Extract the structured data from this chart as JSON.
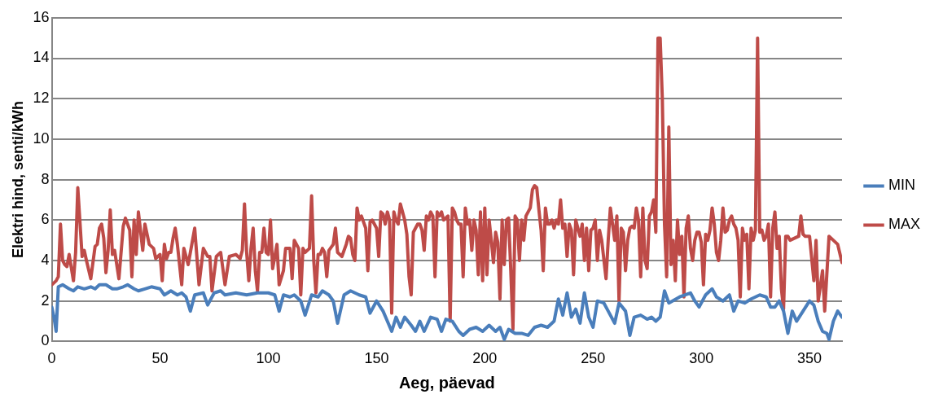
{
  "chart_data": {
    "type": "line",
    "xlabel": "Aeg, päevad",
    "ylabel": "Elektri hind, senti/kWh",
    "xlim": [
      0,
      365
    ],
    "xticks": [
      0,
      50,
      100,
      150,
      200,
      250,
      300,
      350
    ],
    "ylim": [
      0,
      16
    ],
    "yticks": [
      0,
      2,
      4,
      6,
      8,
      10,
      12,
      14,
      16
    ],
    "grid": "y",
    "legend": "right",
    "marker": "none",
    "line_style": "solid",
    "series": [
      {
        "name": "MIN",
        "color": "#4a7ebb",
        "x": [
          0,
          1,
          2,
          3,
          5,
          8,
          10,
          12,
          15,
          18,
          20,
          22,
          25,
          28,
          30,
          33,
          35,
          38,
          40,
          43,
          46,
          50,
          52,
          55,
          58,
          60,
          62,
          64,
          66,
          70,
          72,
          75,
          78,
          80,
          85,
          90,
          95,
          100,
          103,
          105,
          107,
          110,
          112,
          115,
          117,
          120,
          123,
          125,
          128,
          130,
          132,
          135,
          138,
          142,
          145,
          147,
          150,
          153,
          155,
          157,
          159,
          161,
          163,
          166,
          168,
          170,
          172,
          175,
          178,
          180,
          182,
          185,
          188,
          190,
          193,
          196,
          199,
          202,
          205,
          207,
          209,
          211,
          214,
          217,
          220,
          223,
          226,
          229,
          232,
          234,
          236,
          238,
          240,
          242,
          244,
          246,
          248,
          250,
          252,
          255,
          257,
          260,
          262,
          265,
          267,
          269,
          272,
          275,
          277,
          279,
          281,
          283,
          285,
          290,
          295,
          297,
          299,
          302,
          305,
          307,
          310,
          313,
          315,
          317,
          320,
          323,
          325,
          327,
          330,
          332,
          334,
          336,
          338,
          340,
          342,
          344,
          347,
          350,
          352,
          354,
          356,
          358,
          359,
          361,
          363,
          365
        ],
        "values": [
          1.7,
          1.2,
          0.5,
          2.7,
          2.8,
          2.6,
          2.5,
          2.7,
          2.6,
          2.7,
          2.6,
          2.8,
          2.8,
          2.6,
          2.6,
          2.7,
          2.8,
          2.6,
          2.5,
          2.6,
          2.7,
          2.6,
          2.3,
          2.5,
          2.3,
          2.4,
          2.2,
          1.5,
          2.3,
          2.4,
          1.8,
          2.4,
          2.5,
          2.3,
          2.4,
          2.3,
          2.4,
          2.4,
          2.3,
          1.5,
          2.3,
          2.2,
          2.3,
          2.0,
          1.3,
          2.3,
          2.2,
          2.5,
          2.3,
          2.0,
          0.9,
          2.3,
          2.5,
          2.3,
          2.2,
          1.4,
          2.0,
          1.5,
          1.0,
          0.5,
          1.2,
          0.7,
          1.2,
          0.8,
          0.5,
          1.0,
          0.5,
          1.2,
          1.1,
          0.5,
          1.1,
          1.0,
          0.5,
          0.3,
          0.6,
          0.7,
          0.5,
          0.8,
          0.5,
          0.7,
          0.1,
          0.6,
          0.4,
          0.4,
          0.3,
          0.7,
          0.8,
          0.7,
          1.0,
          2.1,
          1.3,
          2.4,
          1.2,
          1.6,
          0.9,
          2.4,
          1.2,
          0.7,
          2.0,
          1.9,
          1.5,
          0.9,
          1.9,
          1.5,
          0.3,
          1.2,
          1.3,
          1.1,
          1.2,
          1.0,
          1.2,
          2.5,
          1.9,
          2.2,
          2.4,
          2.0,
          1.7,
          2.3,
          2.6,
          2.2,
          2.0,
          2.3,
          1.5,
          2.0,
          1.9,
          2.1,
          2.2,
          2.3,
          2.2,
          1.7,
          1.7,
          2.0,
          1.5,
          0.4,
          1.5,
          1.0,
          1.5,
          2.0,
          1.8,
          1.0,
          0.5,
          0.4,
          0.1,
          1.0,
          1.5,
          1.2
        ]
      },
      {
        "name": "MAX",
        "color": "#be4b48",
        "x": [
          0,
          2,
          3,
          4,
          5,
          6,
          7,
          8,
          10,
          11,
          12,
          14,
          15,
          16,
          18,
          20,
          21,
          22,
          23,
          24,
          25,
          26,
          27,
          28,
          29,
          31,
          33,
          34,
          36,
          37,
          38,
          39,
          40,
          42,
          43,
          45,
          47,
          48,
          50,
          51,
          52,
          53,
          54,
          55,
          56,
          57,
          58,
          60,
          61,
          62,
          63,
          64,
          66,
          68,
          70,
          72,
          73,
          74,
          76,
          78,
          80,
          82,
          85,
          87,
          88,
          89,
          90,
          91,
          92,
          93,
          94,
          95,
          96,
          97,
          98,
          99,
          100,
          101,
          102,
          104,
          105,
          107,
          108,
          110,
          111,
          112,
          114,
          115,
          116,
          117,
          119,
          120,
          121,
          122,
          123,
          124,
          125,
          126,
          127,
          128,
          130,
          131,
          132,
          134,
          136,
          137,
          138,
          139,
          140,
          141,
          142,
          143,
          145,
          146,
          147,
          148,
          150,
          151,
          152,
          153,
          154,
          155,
          156,
          157,
          158,
          159,
          160,
          161,
          162,
          163,
          164,
          165,
          166,
          167,
          168,
          169,
          170,
          171,
          172,
          173,
          174,
          175,
          176,
          177,
          178,
          179,
          180,
          181,
          183,
          184,
          185,
          186,
          187,
          188,
          189,
          190,
          191,
          192,
          193,
          194,
          195,
          196,
          197,
          198,
          199,
          200,
          201,
          202,
          203,
          204,
          205,
          206,
          207,
          208,
          209,
          210,
          211,
          212,
          213,
          214,
          215,
          216,
          217,
          218,
          219,
          220,
          221,
          222,
          223,
          224,
          225,
          226,
          227,
          228,
          229,
          230,
          231,
          232,
          233,
          234,
          235,
          236,
          237,
          238,
          239,
          240,
          241,
          242,
          244,
          245,
          246,
          247,
          248,
          249,
          250,
          251,
          252,
          253,
          254,
          256,
          257,
          258,
          260,
          261,
          262,
          263,
          264,
          265,
          266,
          267,
          268,
          269,
          270,
          271,
          272,
          273,
          274,
          275,
          276,
          277,
          278,
          279,
          280,
          281,
          282,
          283,
          284,
          285,
          286,
          287,
          288,
          289,
          290,
          291,
          292,
          293,
          294,
          295,
          296,
          297,
          298,
          299,
          300,
          301,
          302,
          303,
          304,
          305,
          306,
          307,
          308,
          309,
          310,
          311,
          312,
          313,
          314,
          315,
          316,
          317,
          318,
          319,
          320,
          321,
          322,
          323,
          324,
          325,
          326,
          327,
          328,
          329,
          330,
          331,
          332,
          333,
          334,
          335,
          336,
          337,
          338,
          339,
          340,
          341,
          345,
          346,
          347,
          348,
          350,
          352,
          353,
          354,
          356,
          357,
          359,
          361,
          363,
          365
        ],
        "values": [
          2.8,
          3.0,
          3.2,
          5.8,
          4.0,
          3.8,
          3.7,
          4.3,
          3.0,
          4.4,
          7.6,
          4.2,
          4.5,
          4.0,
          3.1,
          4.7,
          4.8,
          5.6,
          5.8,
          5.1,
          3.4,
          4.5,
          6.5,
          4.3,
          4.5,
          3.1,
          5.7,
          6.1,
          5.5,
          3.2,
          6.0,
          4.3,
          6.4,
          4.5,
          5.8,
          4.8,
          4.6,
          4.1,
          4.3,
          3.0,
          4.8,
          4.1,
          4.4,
          4.4,
          5.1,
          5.6,
          4.8,
          2.8,
          4.6,
          4.2,
          3.8,
          4.4,
          5.6,
          2.8,
          4.6,
          4.2,
          4.2,
          2.5,
          4.2,
          4.4,
          2.8,
          4.2,
          4.3,
          4.1,
          4.5,
          6.8,
          4.4,
          3.0,
          4.6,
          5.6,
          3.5,
          2.5,
          4.4,
          4.4,
          5.6,
          4.4,
          4.3,
          6.0,
          3.6,
          4.8,
          2.8,
          3.5,
          4.6,
          4.6,
          3.1,
          5.0,
          4.6,
          2.3,
          4.6,
          4.4,
          4.6,
          7.2,
          4.0,
          2.4,
          4.3,
          4.3,
          4.6,
          4.4,
          3.2,
          4.5,
          4.8,
          5.6,
          4.4,
          4.2,
          4.8,
          5.2,
          5.1,
          4.3,
          4.0,
          6.6,
          6.0,
          6.2,
          5.6,
          3.5,
          5.9,
          6.0,
          5.6,
          4.2,
          6.4,
          6.3,
          5.8,
          6.4,
          6.0,
          1.4,
          6.4,
          6.0,
          5.8,
          6.8,
          6.4,
          6.0,
          5.3,
          3.2,
          2.3,
          5.4,
          5.6,
          5.8,
          5.8,
          5.5,
          4.5,
          6.2,
          6.0,
          6.4,
          6.2,
          3.2,
          6.4,
          6.2,
          6.4,
          6.0,
          6.2,
          1.0,
          6.6,
          6.4,
          6.0,
          5.8,
          5.8,
          3.2,
          6.6,
          5.8,
          6.0,
          4.5,
          6.0,
          5.5,
          3.3,
          6.4,
          3.0,
          6.6,
          3.3,
          6.0,
          5.0,
          3.9,
          5.4,
          4.9,
          2.1,
          6.0,
          3.8,
          6.0,
          6.1,
          3.5,
          0.6,
          6.2,
          6.0,
          4.0,
          6.0,
          5.0,
          6.2,
          6.4,
          6.6,
          7.5,
          7.7,
          7.6,
          6.5,
          5.5,
          3.5,
          6.6,
          5.8,
          5.8,
          6.0,
          5.6,
          6.0,
          5.8,
          7.0,
          5.6,
          5.8,
          4.2,
          5.8,
          5.5,
          3.3,
          6.0,
          5.2,
          5.8,
          4.0,
          5.6,
          3.5,
          5.5,
          5.6,
          6.0,
          4.0,
          5.5,
          5.0,
          3.1,
          5.0,
          6.6,
          5.0,
          6.2,
          2.0,
          5.6,
          5.4,
          3.5,
          5.0,
          5.6,
          5.7,
          5.6,
          6.6,
          6.0,
          3.2,
          6.6,
          4.0,
          3.6,
          6.2,
          6.4,
          7.0,
          5.4,
          15.0,
          15.0,
          12.0,
          5.8,
          3.2,
          10.6,
          3.8,
          5.0,
          3.0,
          6.0,
          4.3,
          5.2,
          2.2,
          5.6,
          6.2,
          4.6,
          4.0,
          5.0,
          5.4,
          5.4,
          4.9,
          2.8,
          5.3,
          5.0,
          5.5,
          6.6,
          5.8,
          4.4,
          4.0,
          5.0,
          6.6,
          5.4,
          5.5,
          6.0,
          6.2,
          5.8,
          5.6,
          5.0,
          2.2,
          5.6,
          5.0,
          5.3,
          2.6,
          5.6,
          5.0,
          5.5,
          15.0,
          5.4,
          5.5,
          5.0,
          5.2,
          5.8,
          2.2,
          5.6,
          6.4,
          4.6,
          5.2,
          2.6,
          1.6,
          5.2,
          5.2,
          5.0,
          5.2,
          6.2,
          5.3,
          5.2,
          5.2,
          3.0,
          5.0,
          2.0,
          3.5,
          1.5,
          5.2,
          5.0,
          4.8,
          3.9
        ]
      }
    ]
  }
}
